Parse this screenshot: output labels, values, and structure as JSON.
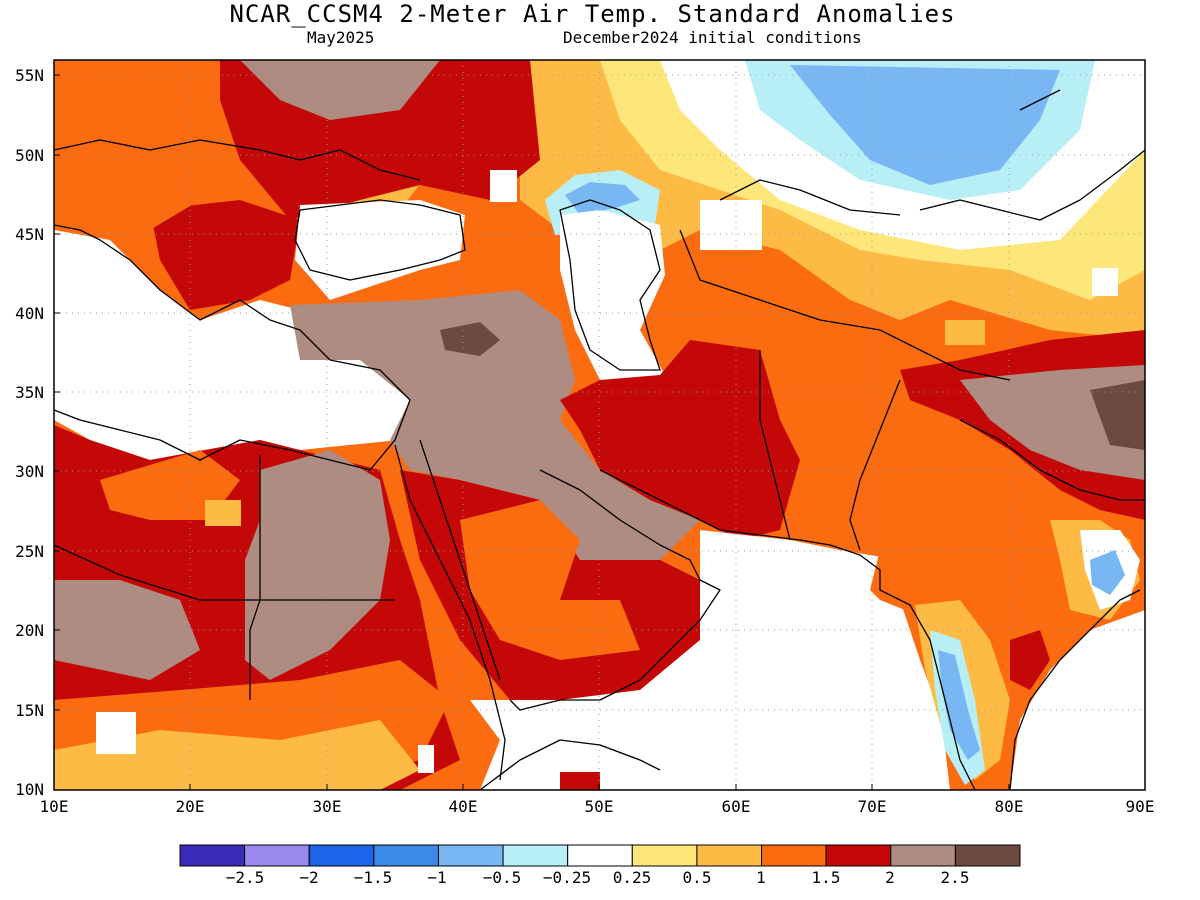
{
  "title": "NCAR_CCSM4 2-Meter Air Temp. Standard Anomalies",
  "valid_month": "May2025",
  "initial_conditions": "December2024 initial conditions",
  "lat_labels": [
    "55N",
    "50N",
    "45N",
    "40N",
    "35N",
    "30N",
    "25N",
    "20N",
    "15N",
    "10N"
  ],
  "lon_labels": [
    "10E",
    "20E",
    "30E",
    "40E",
    "50E",
    "60E",
    "70E",
    "80E",
    "90E"
  ],
  "colorbar": {
    "colors": [
      "#3a2ab8",
      "#9a88ee",
      "#1c64e8",
      "#3c8ae8",
      "#78b6f4",
      "#b8eef6",
      "#ffffff",
      "#fde67a",
      "#fdbb45",
      "#fb6b10",
      "#c40808",
      "#ae8c82",
      "#6c4a40"
    ],
    "labels": [
      "−2.5",
      "−2",
      "−1.5",
      "−1",
      "−0.5",
      "−0.25",
      "0.25",
      "0.5",
      "1",
      "1.5",
      "2",
      "2.5"
    ]
  }
}
